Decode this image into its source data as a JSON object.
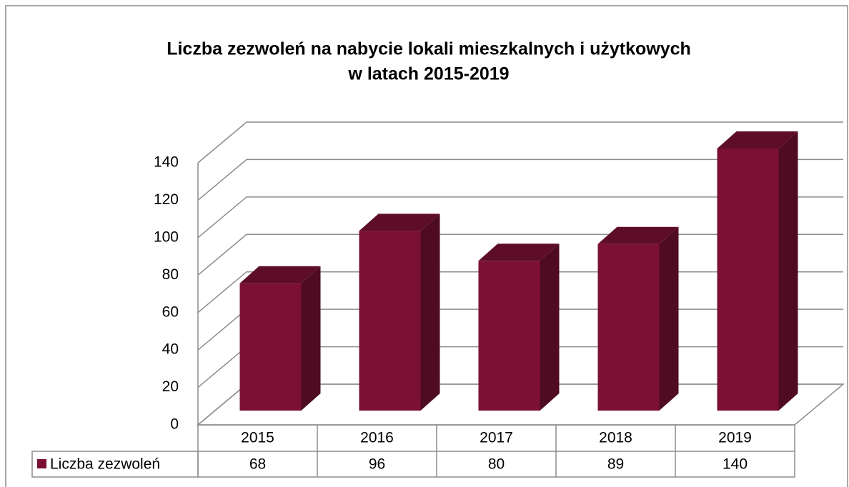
{
  "chart_data": {
    "type": "bar3d",
    "title": [
      "Liczba zezwoleń na nabycie lokali mieszkalnych i użytkowych",
      "w latach 2015-2019"
    ],
    "categories": [
      "2015",
      "2016",
      "2017",
      "2018",
      "2019"
    ],
    "series": [
      {
        "name": "Liczba zezwoleń",
        "color": "#7b1034",
        "values": [
          68,
          96,
          80,
          89,
          140
        ]
      }
    ],
    "ylim": [
      0,
      140
    ],
    "yticks": [
      0,
      20,
      40,
      60,
      80,
      100,
      120,
      140
    ],
    "grid": true,
    "legend": "bottom-left"
  }
}
